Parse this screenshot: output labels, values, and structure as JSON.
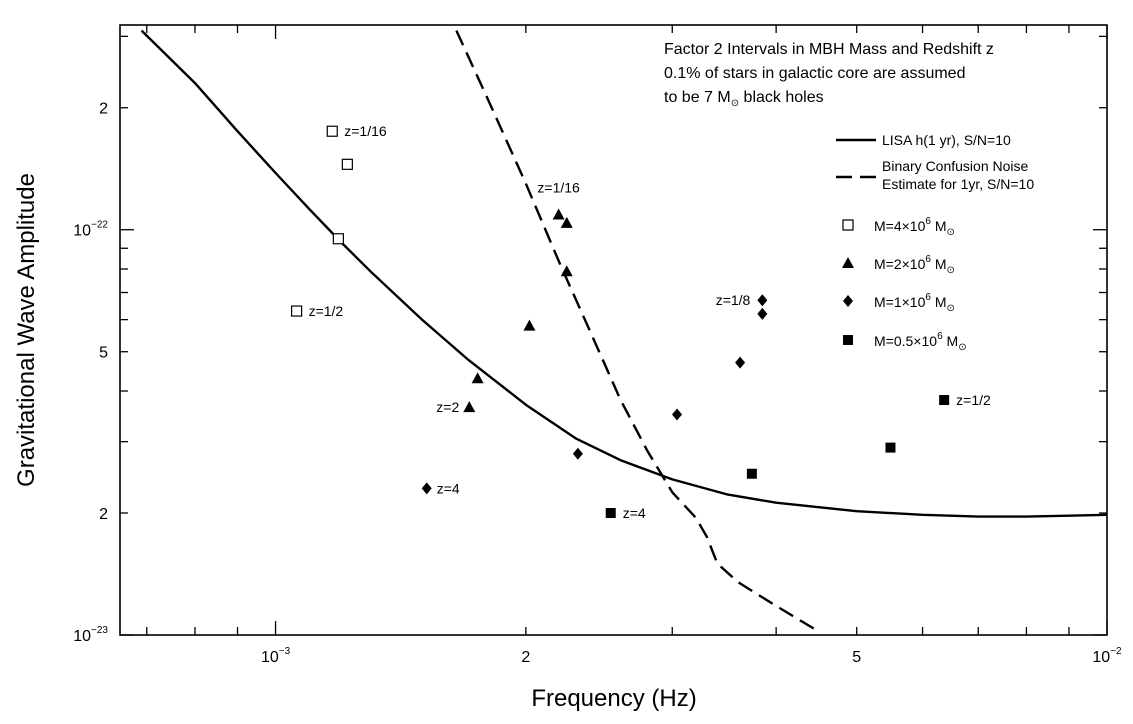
{
  "chart_data": {
    "type": "scatter",
    "title": "",
    "xlabel": "Frequency  (Hz)",
    "ylabel": "Gravitational Wave Amplitude",
    "x_scale": "log",
    "y_scale": "log",
    "xlim": [
      0.00065,
      0.01
    ],
    "ylim": [
      1e-23,
      3.2e-22
    ],
    "x_tick_labels": [
      {
        "value": 0.001,
        "base": "10",
        "exp": "−3"
      },
      {
        "value": 0.002,
        "base": "2",
        "exp": ""
      },
      {
        "value": 0.005,
        "base": "5",
        "exp": ""
      },
      {
        "value": 0.01,
        "base": "10",
        "exp": "−2"
      }
    ],
    "y_tick_labels": [
      {
        "value": 1e-23,
        "base": "10",
        "exp": "−23"
      },
      {
        "value": 2e-23,
        "base": "2",
        "exp": ""
      },
      {
        "value": 5e-23,
        "base": "5",
        "exp": ""
      },
      {
        "value": 1e-22,
        "base": "10",
        "exp": "−22"
      },
      {
        "value": 2e-22,
        "base": "2",
        "exp": ""
      }
    ],
    "annotation_lines": [
      "Factor 2 Intervals in MBH Mass and Redshift z",
      "0.1% of stars in galactic core are assumed",
      "to be 7 M",
      " black holes"
    ],
    "legend": {
      "placement": "top-right",
      "entries": [
        {
          "label_lines": [
            "LISA h(1 yr), S/N=10"
          ],
          "kind": "solid"
        },
        {
          "label_lines": [
            "Binary Confusion Noise",
            "Estimate for 1yr, S/N=10"
          ],
          "kind": "dashed"
        },
        {
          "label": "M=4×10",
          "exp": "6",
          "unit": " M",
          "marker": "open-square"
        },
        {
          "label": "M=2×10",
          "exp": "6",
          "unit": " M",
          "marker": "triangle"
        },
        {
          "label": "M=1×10",
          "exp": "6",
          "unit": " M",
          "marker": "diamond"
        },
        {
          "label": "M=0.5×10",
          "exp": "6",
          "unit": " M",
          "marker": "filled-square"
        }
      ]
    },
    "series": [
      {
        "name": "LISA h(1 yr), S/N=10",
        "style": "solid",
        "x": [
          0.00069,
          0.0008,
          0.0009,
          0.001,
          0.0011,
          0.0012,
          0.0013,
          0.0015,
          0.0017,
          0.002,
          0.0023,
          0.0026,
          0.003,
          0.0035,
          0.004,
          0.005,
          0.006,
          0.007,
          0.008,
          0.009,
          0.01
        ],
        "y": [
          3.1e-22,
          2.3e-22,
          1.75e-22,
          1.38e-22,
          1.12e-22,
          9.3e-23,
          7.9e-23,
          6e-23,
          4.8e-23,
          3.7e-23,
          3.05e-23,
          2.7e-23,
          2.42e-23,
          2.22e-23,
          2.12e-23,
          2.02e-23,
          1.98e-23,
          1.96e-23,
          1.96e-23,
          1.97e-23,
          1.98e-23
        ]
      },
      {
        "name": "Binary Confusion Noise Estimate for 1yr, S/N=10",
        "style": "dashed",
        "x": [
          0.00165,
          0.0018,
          0.002,
          0.0022,
          0.0024,
          0.0026,
          0.0028,
          0.003,
          0.0032,
          0.0033,
          0.0034,
          0.0036,
          0.004,
          0.0045
        ],
        "y": [
          3.1e-22,
          2.1e-22,
          1.3e-22,
          8.2e-23,
          5.5e-23,
          3.8e-23,
          2.85e-23,
          2.25e-23,
          1.95e-23,
          1.75e-23,
          1.5e-23,
          1.35e-23,
          1.18e-23,
          1.02e-23
        ]
      },
      {
        "name": "M=4×10^6 M⊙",
        "marker": "open-square",
        "points": [
          {
            "x": 0.00117,
            "y": 1.75e-22,
            "label": "z=1/16"
          },
          {
            "x": 0.00122,
            "y": 1.45e-22,
            "label": ""
          },
          {
            "x": 0.00119,
            "y": 9.5e-23,
            "label": ""
          },
          {
            "x": 0.00106,
            "y": 6.3e-23,
            "label": "z=1/2"
          }
        ]
      },
      {
        "name": "M=2×10^6 M⊙",
        "marker": "triangle",
        "points": [
          {
            "x": 0.00219,
            "y": 1.09e-22,
            "label": "z=1/16"
          },
          {
            "x": 0.00224,
            "y": 1.04e-22,
            "label": ""
          },
          {
            "x": 0.00224,
            "y": 7.9e-23,
            "label": ""
          },
          {
            "x": 0.00202,
            "y": 5.8e-23,
            "label": ""
          },
          {
            "x": 0.00175,
            "y": 4.3e-23,
            "label": ""
          },
          {
            "x": 0.00171,
            "y": 3.65e-23,
            "label": "z=2"
          }
        ]
      },
      {
        "name": "M=1×10^6 M⊙",
        "marker": "diamond",
        "points": [
          {
            "x": 0.00385,
            "y": 6.7e-23,
            "label": "z=1/8"
          },
          {
            "x": 0.00385,
            "y": 6.2e-23,
            "label": ""
          },
          {
            "x": 0.00362,
            "y": 4.7e-23,
            "label": ""
          },
          {
            "x": 0.00304,
            "y": 3.5e-23,
            "label": ""
          },
          {
            "x": 0.00231,
            "y": 2.8e-23,
            "label": ""
          },
          {
            "x": 0.00152,
            "y": 2.3e-23,
            "label": "z=4"
          }
        ]
      },
      {
        "name": "M=0.5×10^6 M⊙",
        "marker": "filled-square",
        "points": [
          {
            "x": 0.00637,
            "y": 3.8e-23,
            "label": "z=1/2"
          },
          {
            "x": 0.00549,
            "y": 2.9e-23,
            "label": ""
          },
          {
            "x": 0.00374,
            "y": 2.5e-23,
            "label": ""
          },
          {
            "x": 0.00253,
            "y": 2e-23,
            "label": "z=4"
          }
        ]
      }
    ]
  }
}
